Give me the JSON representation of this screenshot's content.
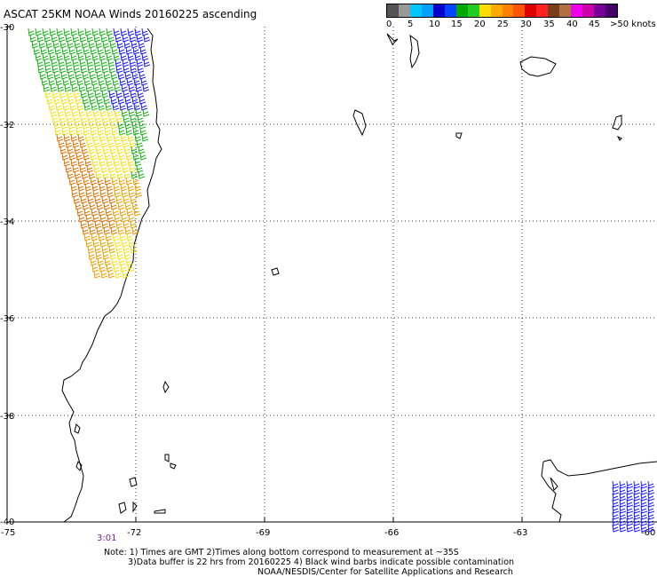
{
  "title": "ASCAT 25KM NOAA Winds 20160225 ascending",
  "legend": {
    "colors": [
      "#555555",
      "#999999",
      "#00c8ff",
      "#00a0ff",
      "#0000cc",
      "#0044ff",
      "#00aa00",
      "#22cc22",
      "#ffdd00",
      "#ffaa00",
      "#ff7f00",
      "#ff5500",
      "#dd0000",
      "#ff2222",
      "#7a3f1a",
      "#b07040",
      "#ee00ee",
      "#cc00aa",
      "#770099",
      "#440066"
    ],
    "labels": [
      "0",
      "5",
      "10",
      "15",
      "20",
      "25",
      "30",
      "35",
      "40",
      "45",
      ">50 knots"
    ]
  },
  "axes": {
    "y_labels": [
      "-30",
      "-32",
      "-34",
      "-36",
      "-38",
      "-40"
    ],
    "x_labels": [
      "-75",
      "-72",
      "-69",
      "-66",
      "-63",
      "-60"
    ]
  },
  "pass_time": "3:01",
  "notes": {
    "line1": "Note: 1) Times are GMT 2)Times along bottom correspond to measurement at ~35S",
    "line2": "3)Data buffer is 22 hrs from 20160225 4) Black wind barbs indicate possible contamination",
    "line3": "NOAA/NESDIS/Center for Satellite Applications and Research"
  },
  "wind_colors": {
    "blue": "#1a1aff",
    "green": "#18b418",
    "yellow": "#f2e21a",
    "orange": "#f0a000",
    "dark_orange": "#e07000"
  }
}
